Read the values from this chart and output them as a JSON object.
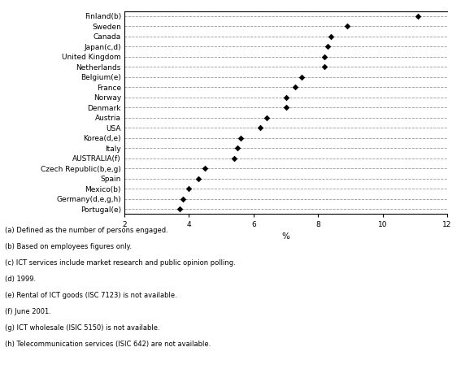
{
  "countries": [
    "Finland(b)",
    "Sweden",
    "Canada",
    "Japan(c,d)",
    "United Kingdom",
    "Netherlands",
    "Belgium(e)",
    "France",
    "Norway",
    "Denmark",
    "Austria",
    "USA",
    "Korea(d,e)",
    "Italy",
    "AUSTRALIA(f)",
    "Czech Republic(b,e,g)",
    "Spain",
    "Mexico(b)",
    "Germany(d,e,g,h)",
    "Portugal(e)"
  ],
  "values": [
    11.1,
    8.9,
    8.4,
    8.3,
    8.2,
    8.2,
    7.5,
    7.3,
    7.0,
    7.0,
    6.4,
    6.2,
    5.6,
    5.5,
    5.4,
    4.5,
    4.3,
    4.0,
    3.8,
    3.7
  ],
  "xlim": [
    2,
    12
  ],
  "xticks": [
    2,
    4,
    6,
    8,
    10,
    12
  ],
  "xlabel": "%",
  "dot_color": "black",
  "line_color": "#999999",
  "footnotes": [
    "(a) Defined as the number of persons engaged.",
    "(b) Based on employees figures only.",
    "(c) ICT services include market research and public opinion polling.",
    "(d) 1999.",
    "(e) Rental of ICT goods (ISC 7123) is not available.",
    "(f) June 2001.",
    "(g) ICT wholesale (ISIC 5150) is not available.",
    "(h) Telecommunication services (ISIC 642) are not available."
  ],
  "font_size_labels": 6.5,
  "font_size_footnotes": 6.0,
  "font_size_xlabel": 7.5
}
